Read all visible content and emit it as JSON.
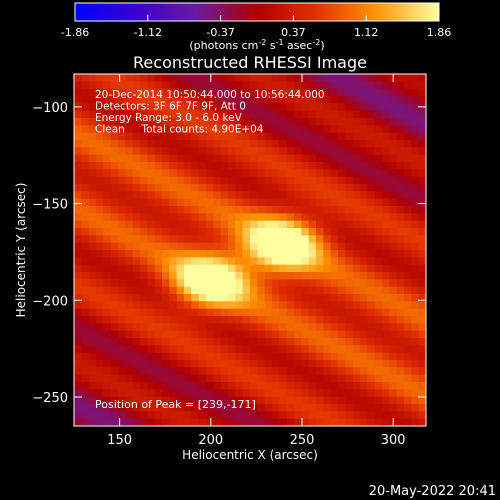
{
  "chart_data": {
    "type": "heatmap",
    "title": "Reconstructed RHESSI Image",
    "xlabel": "Heliocentric X (arcsec)",
    "ylabel": "Heliocentric Y (arcsec)",
    "xlim": [
      125,
      318
    ],
    "ylim": [
      -265,
      -83
    ],
    "x_ticks": [
      150,
      200,
      250,
      300
    ],
    "y_ticks": [
      -100,
      -150,
      -200,
      -250
    ],
    "colorbar": {
      "ticks": [
        "-1.86",
        "-1.12",
        "-0.37",
        "0.37",
        "1.12",
        "1.86"
      ],
      "range": [
        -1.86,
        1.86
      ],
      "units_label": "(photons cm",
      "units_exp1": "-2",
      "units_mid": " s",
      "units_exp2": "-1",
      "units_mid2": " asec",
      "units_exp3": "-2",
      "units_close": ")"
    },
    "annotations": [
      "20-Dec-2014 10:50:44.000 to 10:56:44.000",
      "Detectors: 3F 6F 7F 9F, Att 0",
      "Energy Range: 3.0 - 6.0 keV",
      "Clean     Total counts: 4.90E+04"
    ],
    "peak_label": "Position of Peak = [239,-171]",
    "peak": [
      239,
      -171
    ],
    "sources": [
      {
        "x": 239,
        "y": -171,
        "amplitude": 1.86
      },
      {
        "x": 200,
        "y": -190,
        "amplitude": 1.75
      }
    ]
  },
  "footer_timestamp": "20-May-2022 20:41"
}
